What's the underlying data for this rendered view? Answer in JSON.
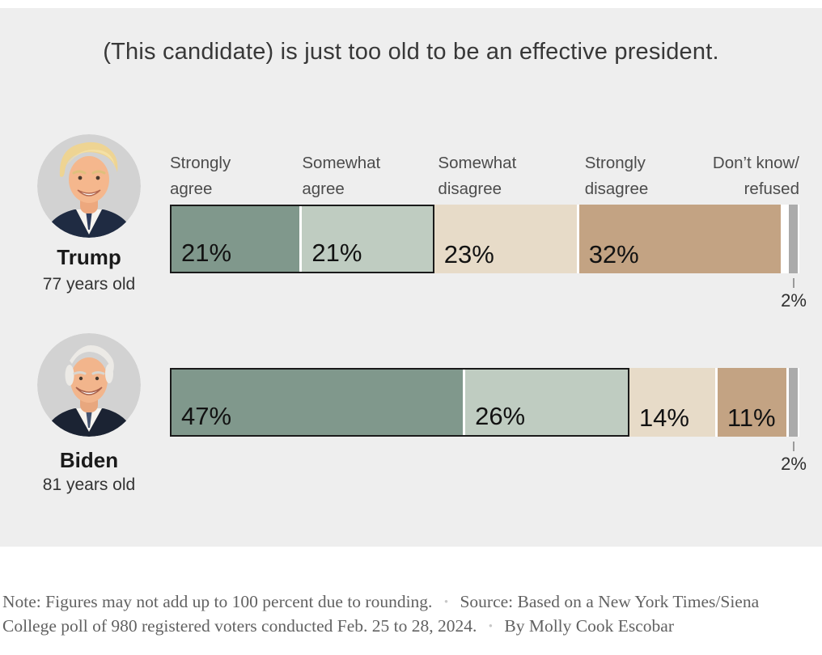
{
  "title": "(This candidate) is just too old to be an effective president.",
  "chart_data": {
    "type": "bar",
    "orientation": "horizontal",
    "stacked": true,
    "unit": "percent",
    "xlim": [
      0,
      100
    ],
    "title": "(This candidate) is just too old to be an effective president.",
    "categories": [
      "Strongly agree",
      "Somewhat agree",
      "Somewhat disagree",
      "Strongly disagree",
      "Don’t know/refused"
    ],
    "headers": [
      {
        "top": "Strongly",
        "bottom": "agree"
      },
      {
        "top": "Somewhat",
        "bottom": "agree"
      },
      {
        "top": "Somewhat",
        "bottom": "disagree"
      },
      {
        "top": "Strongly",
        "bottom": "disagree"
      },
      {
        "top": "Don’t know/",
        "bottom": "refused"
      }
    ],
    "segment_colors": [
      "#80988c",
      "#bfccc1",
      "#e7dbc8",
      "#c3a383",
      "#ababab"
    ],
    "segment_keys": [
      "strongly-agree",
      "somewhat-agree",
      "somewhat-disagree",
      "strongly-disagree",
      "dont-know-refused"
    ],
    "agree_outline_color": "#1a1a1a",
    "series": [
      {
        "name": "Trump",
        "age_label": "77 years old",
        "values": [
          21,
          21,
          23,
          32,
          2
        ],
        "labels": [
          "21%",
          "21%",
          "23%",
          "32%",
          "2%"
        ]
      },
      {
        "name": "Biden",
        "age_label": "81 years old",
        "values": [
          47,
          26,
          14,
          11,
          2
        ],
        "labels": [
          "47%",
          "26%",
          "14%",
          "11%",
          "2%"
        ]
      }
    ],
    "legend_position": "top-as-column-headers",
    "grid": false
  },
  "colors": {
    "panel_background": "#eeeeee",
    "page_background": "#ffffff",
    "title_text": "#383838",
    "header_text": "#4c4c4c",
    "value_text": "#121212",
    "note_text": "#626262",
    "avatar_background": "#d2d2d2"
  },
  "footer": {
    "note": "Note: Figures may not add up to 100 percent due to rounding.",
    "source": "Source: Based on a New York Times/Siena College poll of 980 registered voters conducted Feb. 25 to 28, 2024.",
    "byline": "By Molly Cook Escobar",
    "bullet": "•"
  }
}
